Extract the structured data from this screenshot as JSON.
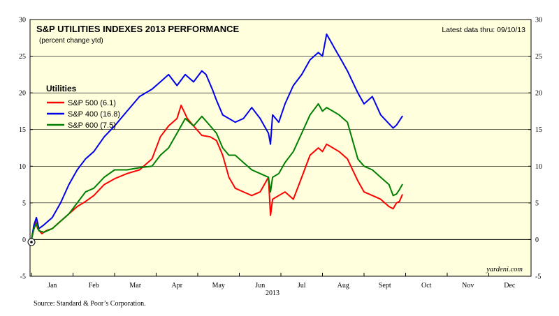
{
  "chart_data": {
    "type": "line",
    "title": "S&P UTILITIES INDEXES 2013 PERFORMANCE",
    "subtitle": "(percent change ytd)",
    "note": "Latest data thru: 09/10/13",
    "watermark": "yardeni.com",
    "source": "Source: Standard & Poor’s Corporation.",
    "year_label": "2013",
    "ylim": [
      -5,
      30
    ],
    "yticks": [
      "-5",
      "0",
      "5",
      "10",
      "15",
      "20",
      "25",
      "30"
    ],
    "months": [
      "Jan",
      "Feb",
      "Mar",
      "Apr",
      "May",
      "Jun",
      "Jul",
      "Aug",
      "Sept",
      "Oct",
      "Nov",
      "Dec"
    ],
    "legend": {
      "title": "Utilities",
      "position": "upper-left"
    },
    "series": [
      {
        "name": "S&P 500 (6.1)",
        "color": "#ff0000",
        "x": [
          0,
          0.06,
          0.1,
          0.15,
          0.25,
          0.35,
          0.5,
          0.7,
          0.9,
          1.1,
          1.3,
          1.5,
          1.75,
          2.0,
          2.3,
          2.6,
          2.9,
          3.1,
          3.3,
          3.5,
          3.6,
          3.75,
          3.9,
          4.1,
          4.3,
          4.45,
          4.6,
          4.75,
          4.9,
          5.1,
          5.3,
          5.5,
          5.7,
          5.75,
          5.8,
          5.95,
          6.1,
          6.3,
          6.5,
          6.7,
          6.9,
          7.0,
          7.1,
          7.25,
          7.4,
          7.6,
          7.85,
          8.0,
          8.2,
          8.4,
          8.6,
          8.7,
          8.78,
          8.85,
          8.92
        ],
        "values": [
          0,
          1.5,
          2.5,
          1.5,
          0.8,
          1.2,
          1.5,
          2.5,
          3.5,
          4.5,
          5.2,
          6.0,
          7.5,
          8.3,
          9.0,
          9.5,
          11.0,
          14.0,
          15.5,
          16.5,
          18.3,
          16.5,
          15.5,
          14.2,
          14.0,
          13.5,
          11.5,
          8.5,
          7.0,
          6.5,
          6.0,
          6.5,
          8.5,
          3.3,
          5.5,
          6.0,
          6.5,
          5.5,
          8.5,
          11.5,
          12.5,
          12.0,
          13.0,
          12.5,
          12.0,
          11.0,
          8.0,
          6.5,
          6.0,
          5.5,
          4.5,
          4.2,
          5.0,
          5.2,
          6.1
        ]
      },
      {
        "name": "S&P 400 (16.8)",
        "color": "#0000ee",
        "x": [
          0,
          0.06,
          0.12,
          0.18,
          0.3,
          0.5,
          0.7,
          0.9,
          1.1,
          1.3,
          1.5,
          1.75,
          2.0,
          2.3,
          2.6,
          2.9,
          3.1,
          3.3,
          3.5,
          3.7,
          3.9,
          4.1,
          4.2,
          4.35,
          4.45,
          4.6,
          4.75,
          4.9,
          5.1,
          5.3,
          5.5,
          5.7,
          5.75,
          5.8,
          5.95,
          6.1,
          6.3,
          6.5,
          6.7,
          6.9,
          7.0,
          7.1,
          7.2,
          7.3,
          7.45,
          7.6,
          7.85,
          8.0,
          8.2,
          8.4,
          8.6,
          8.7,
          8.78,
          8.85,
          8.92
        ],
        "values": [
          0,
          2.0,
          3.0,
          1.5,
          2.0,
          3.0,
          5.0,
          7.5,
          9.5,
          11.0,
          12.0,
          14.0,
          15.5,
          17.5,
          19.5,
          20.5,
          21.5,
          22.5,
          21.0,
          22.5,
          21.5,
          23.0,
          22.5,
          20.5,
          19.0,
          17.0,
          16.5,
          16.0,
          16.5,
          18.0,
          16.5,
          14.5,
          13.0,
          17.0,
          16.0,
          18.5,
          21.0,
          22.5,
          24.5,
          25.5,
          25.0,
          28.0,
          27.0,
          26.0,
          24.5,
          23.0,
          20.0,
          18.5,
          19.5,
          17.0,
          15.8,
          15.2,
          15.6,
          16.2,
          16.8
        ]
      },
      {
        "name": "S&P 600 (7.5)",
        "color": "#008000",
        "x": [
          0,
          0.06,
          0.12,
          0.18,
          0.3,
          0.5,
          0.7,
          0.9,
          1.1,
          1.3,
          1.5,
          1.75,
          2.0,
          2.3,
          2.6,
          2.9,
          3.1,
          3.3,
          3.5,
          3.7,
          3.9,
          4.1,
          4.3,
          4.45,
          4.6,
          4.75,
          4.9,
          5.1,
          5.3,
          5.5,
          5.7,
          5.75,
          5.8,
          5.95,
          6.1,
          6.3,
          6.5,
          6.7,
          6.9,
          7.0,
          7.1,
          7.25,
          7.4,
          7.6,
          7.85,
          8.0,
          8.2,
          8.4,
          8.6,
          8.7,
          8.78,
          8.85,
          8.92
        ],
        "values": [
          0,
          1.5,
          2.2,
          1.2,
          1.0,
          1.5,
          2.5,
          3.5,
          5.0,
          6.5,
          7.0,
          8.5,
          9.5,
          9.5,
          9.8,
          10.0,
          11.5,
          12.5,
          14.5,
          16.5,
          15.5,
          16.8,
          15.5,
          14.5,
          12.5,
          11.5,
          11.5,
          10.5,
          9.5,
          9.0,
          8.5,
          6.5,
          8.5,
          9.0,
          10.5,
          12.0,
          14.5,
          17.0,
          18.5,
          17.5,
          18.0,
          17.5,
          17.0,
          16.0,
          11.0,
          10.0,
          9.5,
          8.5,
          7.5,
          6.0,
          6.2,
          6.8,
          7.5
        ]
      }
    ]
  }
}
